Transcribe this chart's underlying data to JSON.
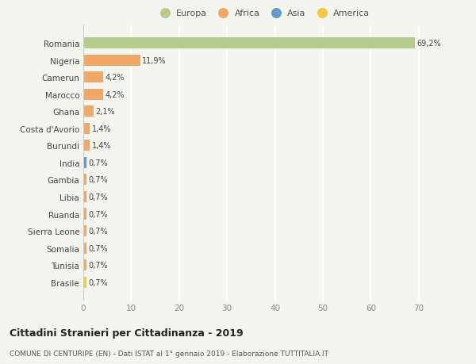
{
  "countries": [
    "Romania",
    "Nigeria",
    "Camerun",
    "Marocco",
    "Ghana",
    "Costa d'Avorio",
    "Burundi",
    "India",
    "Gambia",
    "Libia",
    "Ruanda",
    "Sierra Leone",
    "Somalia",
    "Tunisia",
    "Brasile"
  ],
  "values": [
    69.2,
    11.9,
    4.2,
    4.2,
    2.1,
    1.4,
    1.4,
    0.7,
    0.7,
    0.7,
    0.7,
    0.7,
    0.7,
    0.7,
    0.7
  ],
  "labels": [
    "69,2%",
    "11,9%",
    "4,2%",
    "4,2%",
    "2,1%",
    "1,4%",
    "1,4%",
    "0,7%",
    "0,7%",
    "0,7%",
    "0,7%",
    "0,7%",
    "0,7%",
    "0,7%",
    "0,7%"
  ],
  "continents": [
    "Europa",
    "Africa",
    "Africa",
    "Africa",
    "Africa",
    "Africa",
    "Africa",
    "Asia",
    "Africa",
    "Africa",
    "Africa",
    "Africa",
    "Africa",
    "Africa",
    "America"
  ],
  "colors": {
    "Europa": "#b5cc8e",
    "Africa": "#f0a868",
    "Asia": "#6699cc",
    "America": "#f5c842"
  },
  "xlim": [
    0,
    75
  ],
  "xticks": [
    0,
    10,
    20,
    30,
    40,
    50,
    60,
    70
  ],
  "title": "Cittadini Stranieri per Cittadinanza - 2019",
  "subtitle": "COMUNE DI CENTURIPE (EN) - Dati ISTAT al 1° gennaio 2019 - Elaborazione TUTTITALIA.IT",
  "background_color": "#f5f5f0",
  "grid_color": "#ffffff",
  "bar_height": 0.65
}
